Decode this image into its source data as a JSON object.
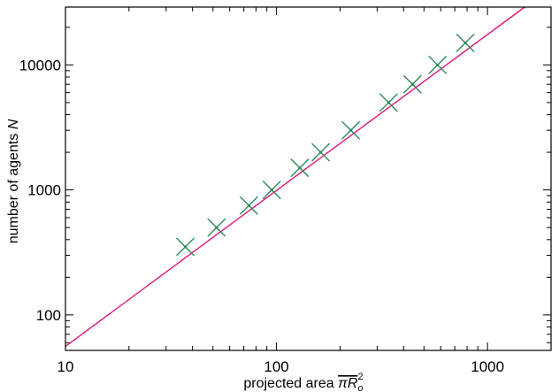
{
  "chart_data": {
    "type": "scatter",
    "scale": {
      "x": "log",
      "y": "log"
    },
    "xlim": [
      10,
      2000
    ],
    "ylim": [
      52,
      29000
    ],
    "xlabel_text": "projected area ",
    "xlabel_symbol": "πR",
    "xlabel_subscript": "o",
    "xlabel_superscript": "2",
    "ylabel_text": "number of agents ",
    "ylabel_symbol": "N",
    "x_tick_labels": [
      "10",
      "100",
      "1000"
    ],
    "y_tick_labels": [
      "100",
      "1000",
      "10000"
    ],
    "grid": false,
    "series": [
      {
        "type": "scatter",
        "marker": "x",
        "color": "#2e8b57",
        "x": [
          37,
          52,
          74,
          95,
          129,
          162,
          225,
          340,
          441,
          580,
          785
        ],
        "y": [
          350,
          500,
          750,
          1000,
          1500,
          2000,
          3000,
          5000,
          7000,
          10000,
          15000
        ]
      },
      {
        "type": "line",
        "color": "#e0187a",
        "x": [
          10,
          1500
        ],
        "y": [
          56,
          29000
        ]
      }
    ]
  }
}
